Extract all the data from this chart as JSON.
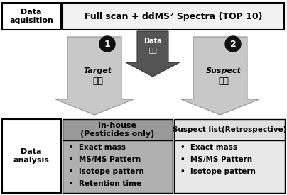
{
  "title_box_label": "Data\naquisition",
  "top_box_text": "Full scan + ddMS² Spectra (TOP 10)",
  "center_arrow_label": "Data\n수집",
  "left_arrow_num": "1",
  "left_arrow_line1": "Target",
  "left_arrow_line2": "분석",
  "right_arrow_num": "2",
  "right_arrow_line1": "Suspect",
  "right_arrow_line2": "분석",
  "data_analysis_label": "Data\nanalysis",
  "inhouse_header": "In-house\n(Pesticides only)",
  "suspect_header": "Suspect list(Retrospective)",
  "inhouse_bullets": [
    "Exact mass",
    "MS/MS Pattern",
    "Isotope pattern",
    "Retention time"
  ],
  "suspect_bullets": [
    "Exact mass",
    "MS/MS Pattern",
    "Isotope pattern"
  ],
  "bg_color": "#ffffff",
  "box_border_color": "#000000",
  "top_box_fill": "#f2f2f2",
  "label_box_fill": "#ffffff",
  "dark_arrow_fill": "#555555",
  "light_arrow_fill": "#c8c8c8",
  "light_arrow_edge": "#999999",
  "inhouse_header_fill": "#999999",
  "inhouse_body_fill": "#b0b0b0",
  "suspect_header_fill": "#e0e0e0",
  "suspect_body_fill": "#e8e8e8"
}
